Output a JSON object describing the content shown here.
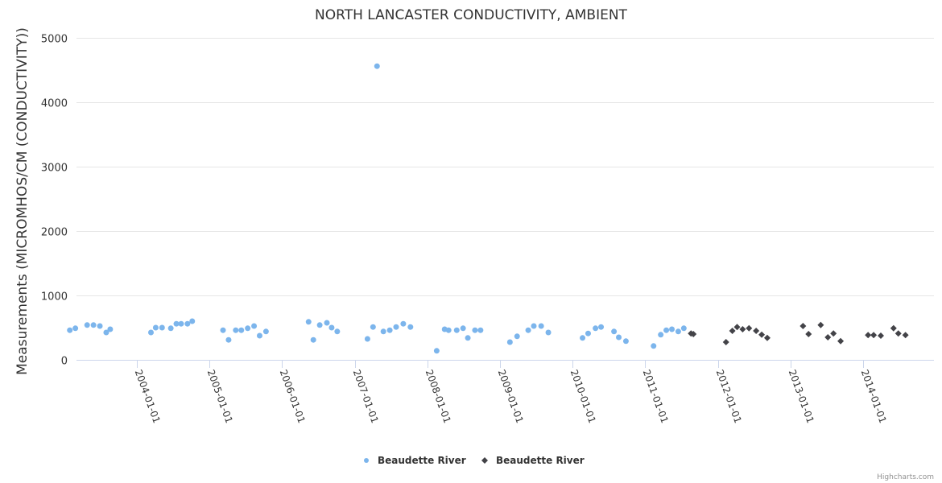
{
  "chart_data": {
    "type": "scatter",
    "title": "NORTH LANCASTER CONDUCTIVITY, AMBIENT",
    "xlabel": "",
    "ylabel": "Measurements (MICROMHOS/CM (CONDUCTIVITY))",
    "ylim": [
      0,
      5000
    ],
    "xlim": [
      "2003-01-01",
      "2014-12-31"
    ],
    "yticks": [
      "0",
      "1000",
      "2000",
      "3000",
      "4000",
      "5000"
    ],
    "xticks": [
      "2004-01-01",
      "2005-01-01",
      "2006-01-01",
      "2007-01-01",
      "2008-01-01",
      "2009-01-01",
      "2010-01-01",
      "2011-01-01",
      "2012-01-01",
      "2013-01-01",
      "2014-01-01"
    ],
    "grid": true,
    "legend_position": "bottom-center",
    "series": [
      {
        "name": "Beaudette River",
        "marker": "circle",
        "color": "#7cb5ec",
        "points": [
          [
            "2003-01-29",
            460
          ],
          [
            "2003-02-26",
            490
          ],
          [
            "2003-04-26",
            540
          ],
          [
            "2003-05-28",
            540
          ],
          [
            "2003-06-29",
            525
          ],
          [
            "2003-07-31",
            425
          ],
          [
            "2003-08-20",
            475
          ],
          [
            "2004-03-12",
            425
          ],
          [
            "2004-04-05",
            500
          ],
          [
            "2004-05-07",
            500
          ],
          [
            "2004-06-20",
            490
          ],
          [
            "2004-07-18",
            560
          ],
          [
            "2004-08-11",
            560
          ],
          [
            "2004-09-12",
            560
          ],
          [
            "2004-10-06",
            600
          ],
          [
            "2005-03-10",
            460
          ],
          [
            "2005-04-07",
            310
          ],
          [
            "2005-05-13",
            460
          ],
          [
            "2005-06-10",
            460
          ],
          [
            "2005-07-12",
            490
          ],
          [
            "2005-08-13",
            525
          ],
          [
            "2005-09-10",
            375
          ],
          [
            "2005-10-12",
            440
          ],
          [
            "2006-05-14",
            590
          ],
          [
            "2006-06-07",
            310
          ],
          [
            "2006-07-09",
            540
          ],
          [
            "2006-08-14",
            575
          ],
          [
            "2006-09-07",
            500
          ],
          [
            "2006-10-05",
            440
          ],
          [
            "2007-03-06",
            325
          ],
          [
            "2007-04-03",
            510
          ],
          [
            "2007-04-23",
            4560
          ],
          [
            "2007-05-25",
            440
          ],
          [
            "2007-06-26",
            460
          ],
          [
            "2007-07-28",
            510
          ],
          [
            "2007-09-02",
            560
          ],
          [
            "2007-10-08",
            510
          ],
          [
            "2008-02-17",
            140
          ],
          [
            "2008-03-28",
            475
          ],
          [
            "2008-04-17",
            460
          ],
          [
            "2008-05-28",
            460
          ],
          [
            "2008-06-29",
            490
          ],
          [
            "2008-07-23",
            340
          ],
          [
            "2008-08-28",
            460
          ],
          [
            "2008-09-25",
            460
          ],
          [
            "2009-02-20",
            275
          ],
          [
            "2009-03-28",
            365
          ],
          [
            "2009-05-23",
            460
          ],
          [
            "2009-06-20",
            525
          ],
          [
            "2009-07-27",
            525
          ],
          [
            "2009-09-01",
            425
          ],
          [
            "2010-02-20",
            340
          ],
          [
            "2010-03-20",
            410
          ],
          [
            "2010-04-26",
            490
          ],
          [
            "2010-05-24",
            510
          ],
          [
            "2010-07-28",
            440
          ],
          [
            "2010-08-21",
            350
          ],
          [
            "2010-09-26",
            290
          ],
          [
            "2011-02-12",
            215
          ],
          [
            "2011-03-20",
            390
          ],
          [
            "2011-04-17",
            460
          ],
          [
            "2011-05-15",
            475
          ],
          [
            "2011-06-16",
            440
          ],
          [
            "2011-07-14",
            490
          ]
        ]
      },
      {
        "name": "Beaudette River",
        "marker": "diamond",
        "color": "#434348",
        "points": [
          [
            "2011-08-19",
            410
          ],
          [
            "2011-08-31",
            400
          ],
          [
            "2012-02-11",
            275
          ],
          [
            "2012-03-14",
            450
          ],
          [
            "2012-04-07",
            510
          ],
          [
            "2012-05-05",
            475
          ],
          [
            "2012-06-06",
            490
          ],
          [
            "2012-07-12",
            450
          ],
          [
            "2012-08-09",
            390
          ],
          [
            "2012-09-06",
            340
          ],
          [
            "2013-03-05",
            525
          ],
          [
            "2013-04-02",
            400
          ],
          [
            "2013-06-02",
            540
          ],
          [
            "2013-07-08",
            350
          ],
          [
            "2013-08-05",
            410
          ],
          [
            "2013-09-10",
            290
          ],
          [
            "2014-01-26",
            385
          ],
          [
            "2014-02-23",
            385
          ],
          [
            "2014-03-31",
            375
          ],
          [
            "2014-06-03",
            490
          ],
          [
            "2014-06-27",
            410
          ],
          [
            "2014-08-02",
            385
          ]
        ]
      }
    ],
    "credits": "Highcharts.com"
  }
}
